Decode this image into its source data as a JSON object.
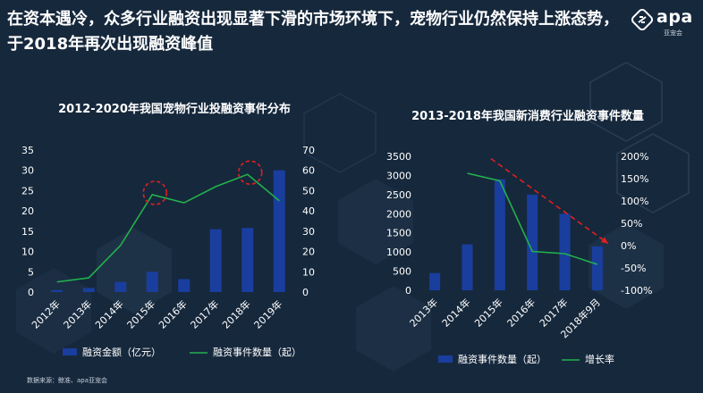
{
  "headline": "在资本遇冷，众多行业融资出现显著下滑的市场环境下，宠物行业仍然保持上涨态势，于2018年再次出现融资峰值",
  "logo": {
    "text": "apa",
    "sub": "亚宠会"
  },
  "source": "数据来源：鲸准、apa亚宠会",
  "colors": {
    "background": "#16283c",
    "bar": "#1a3e9e",
    "line": "#22b14c",
    "highlight": "#e02020",
    "text": "#ffffff"
  },
  "chart_data": [
    {
      "type": "bar",
      "title": "2012-2020年我国宠物行业投融资事件分布",
      "categories": [
        "2012年",
        "2013年",
        "2014年",
        "2015年",
        "2016年",
        "2017年",
        "2018年",
        "2019年"
      ],
      "y_left": {
        "ylim": [
          0,
          35
        ],
        "ticks": [
          0,
          5,
          10,
          15,
          20,
          25,
          30,
          35
        ]
      },
      "y_right": {
        "ylim": [
          0,
          70
        ],
        "ticks": [
          0,
          10,
          20,
          30,
          40,
          50,
          60,
          70
        ]
      },
      "series": [
        {
          "name": "融资金额（亿元）",
          "type": "bar",
          "axis": "left",
          "values": [
            0.5,
            1,
            2.5,
            5,
            3.2,
            15.5,
            15.8,
            30
          ]
        },
        {
          "name": "融资事件数量（起）",
          "type": "line",
          "axis": "right",
          "values": [
            5,
            7,
            23,
            48,
            44,
            52,
            58,
            45
          ]
        }
      ],
      "highlights": [
        "2015年",
        "2018年"
      ],
      "legend": "bottom"
    },
    {
      "type": "bar",
      "title": "2013-2018年我国新消费行业融资事件数量",
      "categories": [
        "2013年",
        "2014年",
        "2015年",
        "2016年",
        "2017年",
        "2018年9月"
      ],
      "y_left": {
        "ylim": [
          0,
          3500
        ],
        "ticks": [
          0,
          500,
          1000,
          1500,
          2000,
          2500,
          3000,
          3500
        ]
      },
      "y_right": {
        "ylim": [
          -100,
          200
        ],
        "ticks": [
          "-100%",
          "-50%",
          "0%",
          "50%",
          "100%",
          "150%",
          "200%"
        ]
      },
      "series": [
        {
          "name": "融资事件数量（起）",
          "type": "bar",
          "axis": "left",
          "values": [
            450,
            1200,
            2900,
            2500,
            2000,
            1150
          ]
        },
        {
          "name": "增长率",
          "type": "line",
          "axis": "right",
          "values": [
            null,
            162,
            145,
            -13,
            -18,
            -42
          ]
        }
      ],
      "trend_annotation": "dashed red downward arrow",
      "legend": "bottom"
    }
  ]
}
